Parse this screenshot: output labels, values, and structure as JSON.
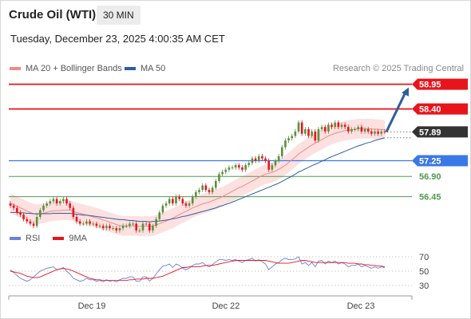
{
  "header": {
    "instrument": "Crude Oil (WTI)",
    "timeframe": "30 MIN",
    "datetime": "Tuesday, December 23, 2025 4:00:35 AM CET"
  },
  "legend": {
    "items": [
      {
        "label": "MA 20 + Bollinger Bands",
        "color": "#f08a8a"
      },
      {
        "label": "MA 50",
        "color": "#2f5e9e"
      }
    ],
    "credit": "Research © 2025 Trading Central"
  },
  "colors": {
    "resistance": "#e8141b",
    "current": "#333333",
    "pivot": "#3b78e7",
    "support": "#4f9a4f",
    "up_candle": "#5b8f3c",
    "down_candle": "#e8141b",
    "arrow": "#2f5e9e",
    "band_fill": "#fde0e0",
    "ma20": "#f08a8a",
    "ma50": "#2f5e9e",
    "rsi": "#6b82d6",
    "rsi_ma": "#e8141b"
  },
  "chart_data": [
    {
      "type": "candlestick",
      "title": "Crude Oil (WTI)",
      "x_tick_labels": [
        "Dec 19",
        "Dec 22",
        "Dec 23"
      ],
      "ylim": [
        56.0,
        59.05
      ],
      "levels": [
        {
          "value": 58.95,
          "label": "58.95",
          "kind": "resistance"
        },
        {
          "value": 58.4,
          "label": "58.40",
          "kind": "resistance"
        },
        {
          "value": 57.89,
          "label": "57.89",
          "kind": "current"
        },
        {
          "value": 57.25,
          "label": "57.25",
          "kind": "pivot"
        },
        {
          "value": 56.9,
          "label": "56.90",
          "kind": "support"
        },
        {
          "value": 56.45,
          "label": "56.45",
          "kind": "support"
        }
      ],
      "projection": {
        "from": 57.89,
        "to": 58.95
      },
      "close": [
        56.25,
        56.2,
        56.1,
        56.05,
        55.95,
        55.9,
        55.85,
        55.8,
        56.0,
        56.15,
        56.25,
        56.3,
        56.35,
        56.4,
        56.3,
        56.35,
        56.4,
        56.3,
        56.2,
        56.0,
        55.9,
        55.85,
        55.85,
        55.9,
        55.85,
        55.85,
        55.8,
        55.8,
        55.75,
        55.8,
        55.75,
        55.75,
        55.7,
        55.75,
        55.8,
        55.8,
        55.85,
        55.85,
        55.7,
        55.7,
        55.85,
        55.85,
        55.7,
        55.8,
        55.95,
        56.1,
        56.25,
        56.3,
        56.4,
        56.3,
        56.45,
        56.4,
        56.3,
        56.25,
        56.3,
        56.45,
        56.55,
        56.6,
        56.7,
        56.6,
        56.55,
        56.65,
        56.8,
        56.95,
        57.0,
        57.05,
        57.1,
        57.1,
        57.15,
        57.1,
        57.05,
        57.15,
        57.2,
        57.3,
        57.25,
        57.35,
        57.3,
        57.25,
        57.05,
        57.15,
        57.25,
        57.35,
        57.55,
        57.7,
        57.75,
        57.8,
        57.9,
        58.1,
        57.85,
        57.95,
        57.8,
        57.9,
        57.7,
        57.95,
        58.0,
        57.9,
        58.05,
        58.0,
        58.1,
        58.0,
        58.05,
        58.0,
        57.9,
        57.95,
        57.95,
        58.0,
        57.9,
        57.95,
        57.9,
        57.85,
        57.9,
        57.85,
        57.9,
        57.89
      ],
      "ma20": [
        56.3,
        56.27,
        56.24,
        56.2,
        56.17,
        56.13,
        56.1,
        56.07,
        56.06,
        56.07,
        56.08,
        56.1,
        56.12,
        56.13,
        56.14,
        56.14,
        56.15,
        56.15,
        56.15,
        56.12,
        56.1,
        56.08,
        56.06,
        56.04,
        56.02,
        56.0,
        55.98,
        55.96,
        55.93,
        55.91,
        55.88,
        55.86,
        55.83,
        55.81,
        55.8,
        55.8,
        55.8,
        55.8,
        55.8,
        55.79,
        55.79,
        55.8,
        55.79,
        55.8,
        55.82,
        55.85,
        55.88,
        55.91,
        55.94,
        55.97,
        56.01,
        56.05,
        56.09,
        56.12,
        56.16,
        56.2,
        56.23,
        56.26,
        56.29,
        56.31,
        56.33,
        56.36,
        56.39,
        56.42,
        56.45,
        56.49,
        56.53,
        56.57,
        56.61,
        56.65,
        56.68,
        56.72,
        56.76,
        56.8,
        56.84,
        56.88,
        56.92,
        56.95,
        56.97,
        56.99,
        57.02,
        57.06,
        57.1,
        57.15,
        57.21,
        57.27,
        57.33,
        57.4,
        57.45,
        57.5,
        57.55,
        57.6,
        57.64,
        57.68,
        57.72,
        57.76,
        57.8,
        57.83,
        57.86,
        57.88,
        57.9,
        57.92,
        57.93,
        57.94,
        57.95,
        57.96,
        57.96,
        57.96,
        57.96,
        57.96,
        57.95,
        57.95,
        57.94,
        57.94
      ],
      "ma50": [
        56.1,
        56.1,
        56.1,
        56.09,
        56.09,
        56.08,
        56.08,
        56.07,
        56.07,
        56.07,
        56.07,
        56.07,
        56.07,
        56.08,
        56.08,
        56.08,
        56.08,
        56.08,
        56.08,
        56.07,
        56.06,
        56.05,
        56.04,
        56.04,
        56.03,
        56.02,
        56.01,
        56.0,
        55.99,
        55.98,
        55.97,
        55.96,
        55.95,
        55.94,
        55.94,
        55.93,
        55.92,
        55.92,
        55.91,
        55.9,
        55.9,
        55.9,
        55.89,
        55.9,
        55.9,
        55.91,
        55.92,
        55.93,
        55.94,
        55.96,
        55.97,
        55.99,
        56.01,
        56.02,
        56.04,
        56.06,
        56.08,
        56.1,
        56.12,
        56.14,
        56.16,
        56.18,
        56.2,
        56.23,
        56.25,
        56.28,
        56.3,
        56.33,
        56.36,
        56.39,
        56.42,
        56.45,
        56.48,
        56.51,
        56.54,
        56.57,
        56.6,
        56.63,
        56.66,
        56.69,
        56.72,
        56.75,
        56.79,
        56.83,
        56.87,
        56.91,
        56.95,
        57.0,
        57.03,
        57.07,
        57.1,
        57.14,
        57.17,
        57.2,
        57.24,
        57.27,
        57.31,
        57.34,
        57.37,
        57.4,
        57.43,
        57.46,
        57.49,
        57.52,
        57.55,
        57.58,
        57.6,
        57.63,
        57.65,
        57.67,
        57.7,
        57.72,
        57.74,
        57.76
      ],
      "band_width": 0.22
    },
    {
      "type": "line",
      "title": "RSI",
      "ylim": [
        25,
        78
      ],
      "y_ticks": [
        70,
        50,
        30
      ],
      "series": [
        {
          "name": "RSI",
          "values": [
            52,
            48,
            44,
            40,
            38,
            36,
            38,
            42,
            46,
            50,
            52,
            54,
            55,
            56,
            52,
            53,
            55,
            50,
            46,
            40,
            38,
            36,
            37,
            40,
            38,
            38,
            36,
            37,
            35,
            38,
            36,
            37,
            35,
            38,
            40,
            40,
            42,
            42,
            36,
            36,
            42,
            42,
            36,
            40,
            46,
            52,
            57,
            58,
            60,
            55,
            60,
            58,
            54,
            52,
            54,
            58,
            60,
            60,
            62,
            58,
            56,
            59,
            63,
            66,
            66,
            65,
            66,
            65,
            66,
            64,
            62,
            65,
            66,
            68,
            64,
            66,
            63,
            60,
            52,
            56,
            60,
            62,
            66,
            68,
            66,
            66,
            67,
            70,
            60,
            62,
            58,
            62,
            56,
            64,
            65,
            60,
            64,
            62,
            64,
            60,
            62,
            60,
            56,
            58,
            58,
            60,
            56,
            58,
            56,
            54,
            56,
            54,
            56,
            55
          ]
        },
        {
          "name": "9MA",
          "values": [
            50,
            49,
            48,
            47,
            45,
            43,
            42,
            41,
            41,
            42,
            44,
            46,
            48,
            50,
            52,
            53,
            54,
            53,
            52,
            50,
            48,
            46,
            44,
            42,
            40,
            39,
            38,
            38,
            37,
            37,
            37,
            37,
            37,
            37,
            37,
            37,
            38,
            38,
            39,
            39,
            39,
            40,
            40,
            40,
            41,
            42,
            43,
            45,
            47,
            49,
            51,
            53,
            55,
            55,
            56,
            56,
            56,
            56,
            57,
            58,
            58,
            58,
            59,
            60,
            61,
            62,
            63,
            64,
            65,
            65,
            65,
            65,
            65,
            65,
            65,
            65,
            65,
            65,
            64,
            63,
            62,
            61,
            61,
            61,
            61,
            62,
            63,
            64,
            65,
            65,
            64,
            63,
            62,
            62,
            62,
            62,
            62,
            62,
            62,
            62,
            62,
            62,
            61,
            61,
            61,
            60,
            60,
            59,
            59,
            58,
            58,
            57,
            57,
            56
          ]
        }
      ]
    }
  ]
}
